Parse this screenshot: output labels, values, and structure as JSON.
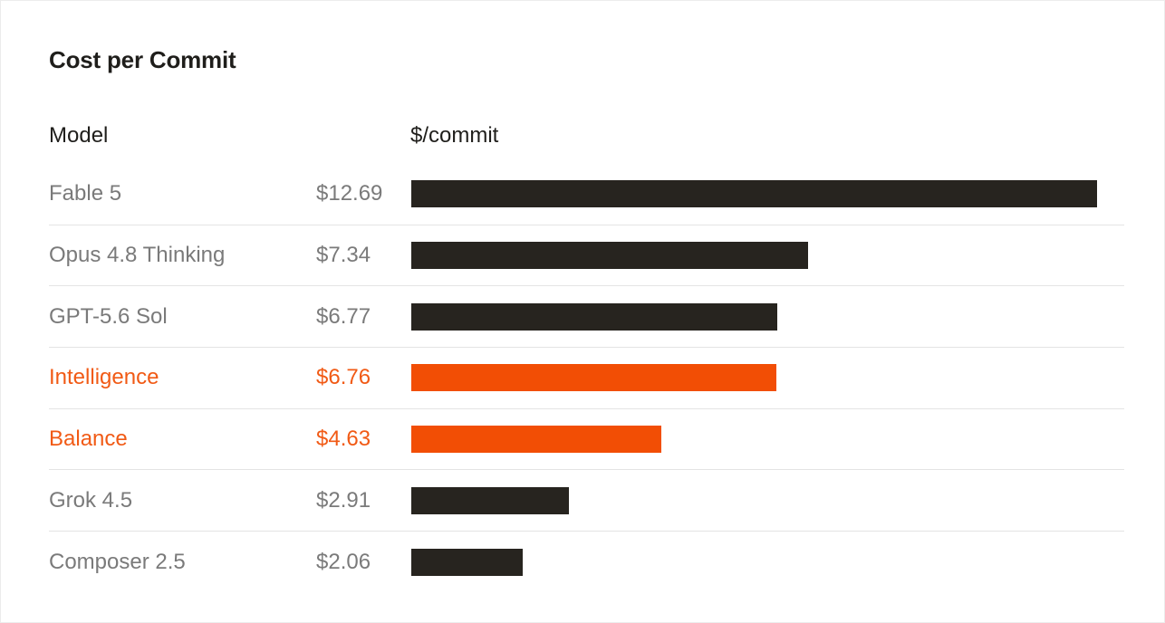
{
  "chart_data": {
    "type": "bar",
    "orientation": "horizontal",
    "title": "Cost per Commit",
    "column_headers": {
      "label": "Model",
      "value": "$/commit"
    },
    "xlim": [
      0,
      12.69
    ],
    "grid": false,
    "legend": "none",
    "colors": {
      "default": "#27241f",
      "highlight": "#f24e05",
      "highlight_text": "#f15a15"
    },
    "rows": [
      {
        "name": "Fable 5",
        "value": 12.69,
        "label": "$12.69",
        "highlight": false
      },
      {
        "name": "Opus 4.8 Thinking",
        "value": 7.34,
        "label": "$7.34",
        "highlight": false
      },
      {
        "name": "GPT-5.6 Sol",
        "value": 6.77,
        "label": "$6.77",
        "highlight": false
      },
      {
        "name": "Intelligence",
        "value": 6.76,
        "label": "$6.76",
        "highlight": true
      },
      {
        "name": "Balance",
        "value": 4.63,
        "label": "$4.63",
        "highlight": true
      },
      {
        "name": "Grok 4.5",
        "value": 2.91,
        "label": "$2.91",
        "highlight": false
      },
      {
        "name": "Composer 2.5",
        "value": 2.06,
        "label": "$2.06",
        "highlight": false
      }
    ]
  }
}
